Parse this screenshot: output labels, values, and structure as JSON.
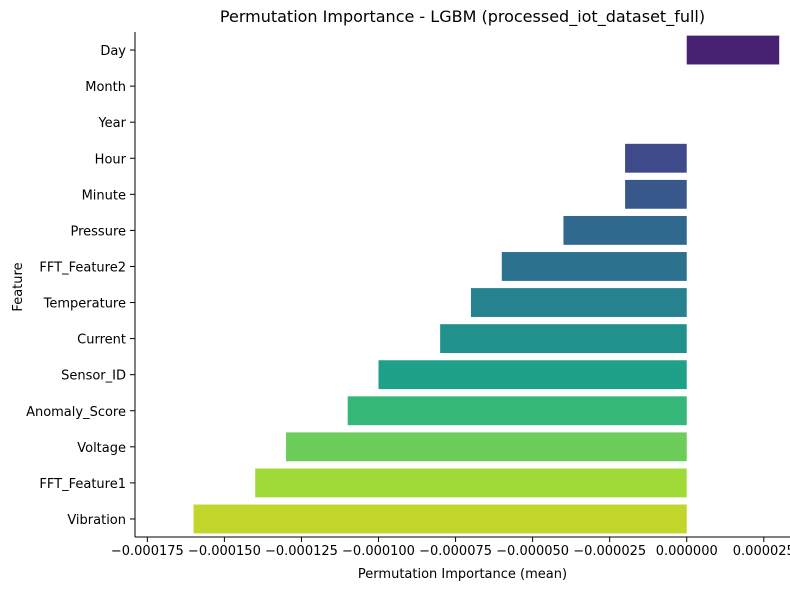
{
  "chart_data": {
    "type": "bar",
    "orientation": "horizontal",
    "title": "Permutation Importance - LGBM (processed_iot_dataset_full)",
    "xlabel": "Permutation Importance (mean)",
    "ylabel": "Feature",
    "categories": [
      "Day",
      "Month",
      "Year",
      "Hour",
      "Minute",
      "Pressure",
      "FFT_Feature2",
      "Temperature",
      "Current",
      "Sensor_ID",
      "Anomaly_Score",
      "Voltage",
      "FFT_Feature1",
      "Vibration"
    ],
    "values": [
      3e-05,
      0.0,
      0.0,
      -2e-05,
      -2e-05,
      -4e-05,
      -6e-05,
      -7e-05,
      -8e-05,
      -0.0001,
      -0.00011,
      -0.00013,
      -0.00014,
      -0.00016
    ],
    "colors": [
      "#482173",
      "#472e7c",
      "#433e85",
      "#3e4a89",
      "#38588c",
      "#31688e",
      "#2c728e",
      "#26828e",
      "#21918c",
      "#1fa088",
      "#35b779",
      "#6ccd5a",
      "#a0da39",
      "#c2d52a"
    ],
    "xticks": [
      "−0.000175",
      "−0.000150",
      "−0.000125",
      "−0.000100",
      "−0.000075",
      "−0.000050",
      "−0.000025",
      "0.000000",
      "0.000025"
    ],
    "xtick_values": [
      -0.000175,
      -0.00015,
      -0.000125,
      -0.0001,
      -7.5e-05,
      -5e-05,
      -2.5e-05,
      0.0,
      2.5e-05
    ],
    "xlim": [
      -0.000179,
      3.35e-05
    ],
    "grid": false,
    "legend": "none"
  }
}
